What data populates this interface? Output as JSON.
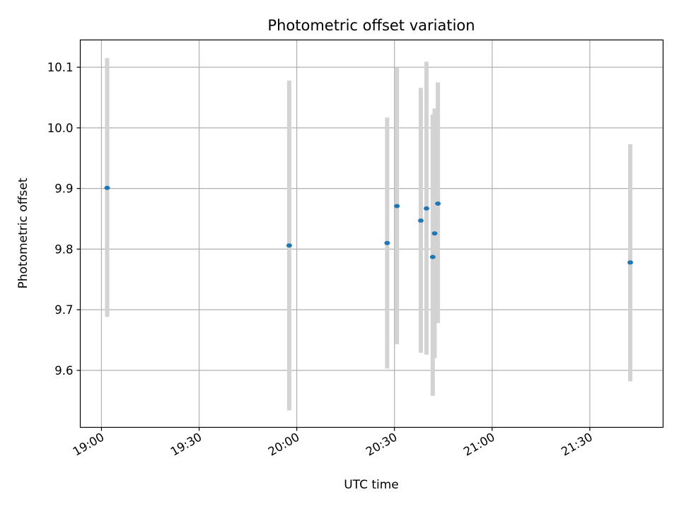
{
  "chart_data": {
    "type": "scatter",
    "title": "Photometric offset variation",
    "xlabel": "UTC time",
    "ylabel": "Photometric offset",
    "x_unit": "time of day (UTC)",
    "xlim": [
      "18:53:30",
      "21:52:30"
    ],
    "ylim": [
      9.506,
      10.145
    ],
    "x_ticks": [
      "19:00",
      "19:30",
      "20:00",
      "20:30",
      "21:00",
      "21:30"
    ],
    "y_ticks": [
      9.6,
      9.7,
      9.8,
      9.9,
      10.0,
      10.1
    ],
    "y_tick_labels": [
      "9.6",
      "9.7",
      "9.8",
      "9.9",
      "10.0",
      "10.1"
    ],
    "grid": true,
    "legend": "none",
    "colors": {
      "points": "#1f77b4",
      "error_bars": "#d3d3d3",
      "grid": "#b0b0b0"
    },
    "points": [
      {
        "x": "19:01:45",
        "y": 9.901,
        "ylow": 9.688,
        "yhigh": 10.115
      },
      {
        "x": "19:57:40",
        "y": 9.806,
        "ylow": 9.534,
        "yhigh": 10.078
      },
      {
        "x": "20:27:45",
        "y": 9.81,
        "ylow": 9.603,
        "yhigh": 10.017
      },
      {
        "x": "20:30:45",
        "y": 9.871,
        "ylow": 9.643,
        "yhigh": 10.099
      },
      {
        "x": "20:38:05",
        "y": 9.847,
        "ylow": 9.629,
        "yhigh": 10.066
      },
      {
        "x": "20:39:50",
        "y": 9.867,
        "ylow": 9.626,
        "yhigh": 10.109
      },
      {
        "x": "20:41:45",
        "y": 9.787,
        "ylow": 9.558,
        "yhigh": 10.022
      },
      {
        "x": "20:42:20",
        "y": 9.826,
        "ylow": 9.62,
        "yhigh": 10.032
      },
      {
        "x": "20:43:20",
        "y": 9.875,
        "ylow": 9.678,
        "yhigh": 10.075
      },
      {
        "x": "21:42:25",
        "y": 9.778,
        "ylow": 9.582,
        "yhigh": 9.973
      }
    ]
  }
}
